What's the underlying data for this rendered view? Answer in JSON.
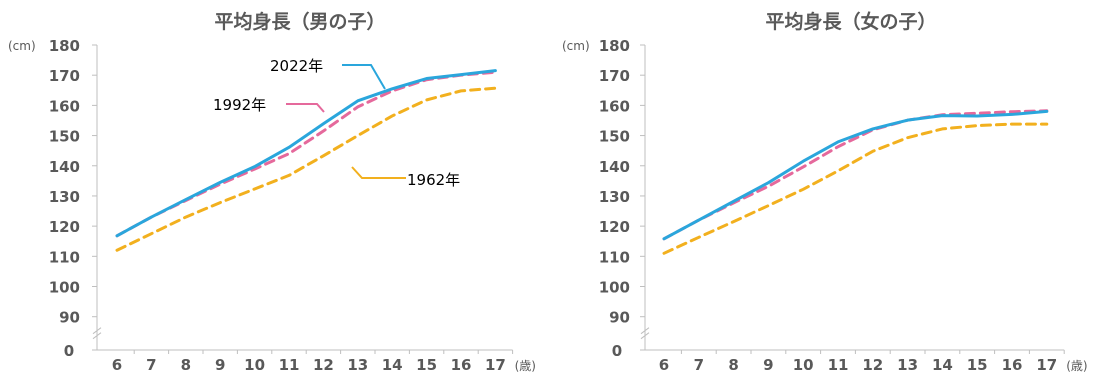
{
  "chart_data": [
    {
      "type": "line",
      "title": "平均身長（男の子）",
      "ylabel": "(cm)",
      "xlabel": "(歳)",
      "x": [
        6,
        7,
        8,
        9,
        10,
        11,
        12,
        13,
        14,
        15,
        16,
        17
      ],
      "y_ticks": [
        "0",
        "90",
        "100",
        "110",
        "120",
        "130",
        "140",
        "150",
        "160",
        "170",
        "180"
      ],
      "ylim": [
        90,
        180
      ],
      "axis_break": true,
      "series": [
        {
          "name": "1962年",
          "color": "#F2B01E",
          "dash": true,
          "values": [
            112.0,
            117.5,
            123.0,
            127.8,
            132.3,
            136.8,
            143.3,
            150.0,
            156.5,
            161.8,
            164.8,
            165.7
          ]
        },
        {
          "name": "1992年",
          "color": "#E5699C",
          "dash": true,
          "values": [
            116.8,
            123.0,
            128.5,
            133.9,
            138.9,
            144.0,
            151.5,
            159.5,
            164.8,
            168.5,
            170.0,
            171.0
          ]
        },
        {
          "name": "2022年",
          "color": "#2AA6DC",
          "dash": false,
          "values": [
            116.8,
            123.0,
            128.8,
            134.5,
            139.7,
            146.1,
            153.9,
            161.5,
            165.5,
            168.9,
            170.2,
            171.5
          ]
        }
      ]
    },
    {
      "type": "line",
      "title": "平均身長（女の子）",
      "ylabel": "(cm)",
      "xlabel": "(歳)",
      "x": [
        6,
        7,
        8,
        9,
        10,
        11,
        12,
        13,
        14,
        15,
        16,
        17
      ],
      "y_ticks": [
        "0",
        "90",
        "100",
        "110",
        "120",
        "130",
        "140",
        "150",
        "160",
        "170",
        "180"
      ],
      "ylim": [
        90,
        180
      ],
      "axis_break": true,
      "series": [
        {
          "name": "1962年",
          "color": "#F2B01E",
          "dash": true,
          "values": [
            111.0,
            116.3,
            121.5,
            126.8,
            132.2,
            138.3,
            144.8,
            149.3,
            152.2,
            153.3,
            153.8,
            153.8
          ]
        },
        {
          "name": "1992年",
          "color": "#E5699C",
          "dash": true,
          "values": [
            115.8,
            122.0,
            127.7,
            133.2,
            139.6,
            146.3,
            151.9,
            155.1,
            156.9,
            157.4,
            157.9,
            158.2
          ]
        },
        {
          "name": "2022年",
          "color": "#2AA6DC",
          "dash": false,
          "values": [
            115.8,
            122.0,
            128.2,
            134.4,
            141.5,
            147.9,
            152.2,
            155.1,
            156.6,
            156.5,
            157.0,
            158.0
          ]
        }
      ]
    }
  ],
  "legend_labels": [
    "2022年",
    "1992年",
    "1962年"
  ]
}
